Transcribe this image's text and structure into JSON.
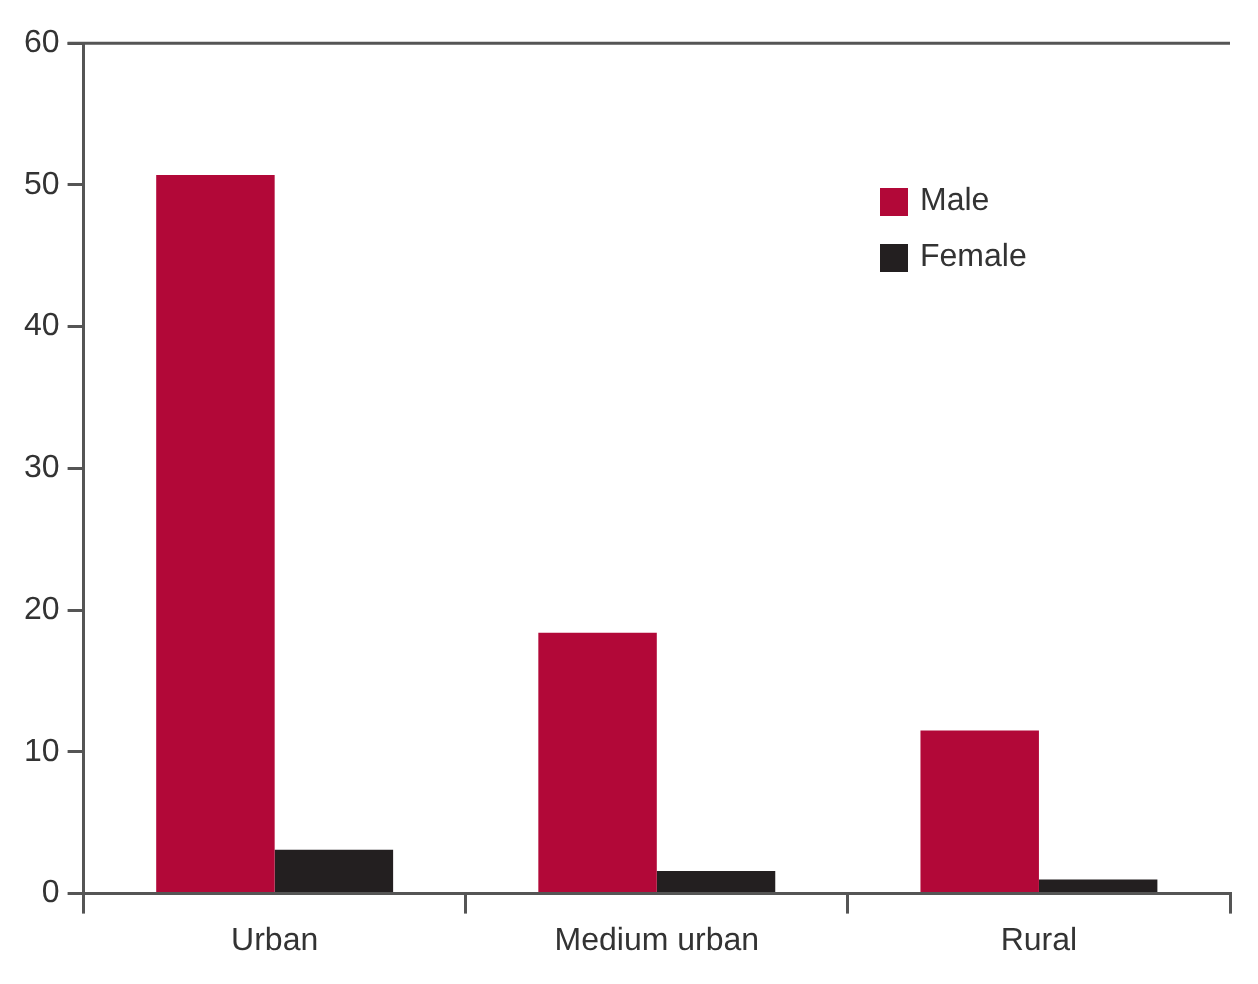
{
  "chart_data": {
    "type": "bar",
    "categories": [
      "Urban",
      "Medium urban",
      "Rural"
    ],
    "series": [
      {
        "name": "Male",
        "color": "#b20838",
        "values": [
          50.7,
          18.4,
          11.5
        ]
      },
      {
        "name": "Female",
        "color": "#231f20",
        "values": [
          3.1,
          1.6,
          1.0
        ]
      }
    ],
    "ylim": [
      0,
      60
    ],
    "yticks": [
      0,
      10,
      20,
      30,
      40,
      50,
      60
    ],
    "grid": false,
    "legend": "top right"
  }
}
